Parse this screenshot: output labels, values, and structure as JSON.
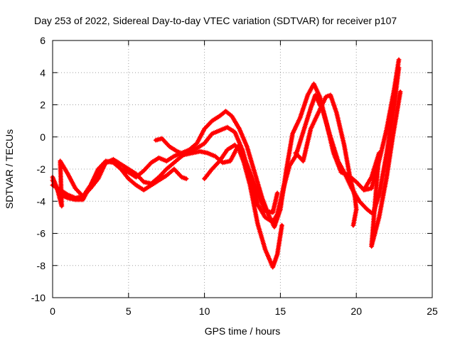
{
  "chart_data": {
    "type": "scatter",
    "title": "Day 253 of 2022, Sidereal Day-to-day VTEC variation (SDTVAR) for receiver p107",
    "xlabel": "GPS time / hours",
    "ylabel": "SDTVAR / TECUs",
    "xlim": [
      0,
      25
    ],
    "ylim": [
      -10,
      6
    ],
    "xticks": [
      "0",
      "5",
      "10",
      "15",
      "20",
      "25"
    ],
    "yticks": [
      "-10",
      "-8",
      "-6",
      "-4",
      "-2",
      "0",
      "2",
      "4",
      "6"
    ],
    "grid": true,
    "marker": "plus",
    "color": "#ff0000",
    "series": [
      {
        "name": "trace-1",
        "points": [
          [
            0.0,
            -2.7
          ],
          [
            0.5,
            -3.6
          ],
          [
            1.0,
            -3.8
          ],
          [
            1.5,
            -3.9
          ],
          [
            2.0,
            -3.9
          ],
          [
            2.5,
            -3.0
          ],
          [
            3.0,
            -2.0
          ],
          [
            3.5,
            -1.5
          ],
          [
            4.0,
            -1.6
          ],
          [
            4.5,
            -2.0
          ],
          [
            5.0,
            -2.2
          ],
          [
            5.5,
            -2.5
          ],
          [
            6.0,
            -2.1
          ],
          [
            6.5,
            -1.6
          ],
          [
            7.0,
            -1.3
          ],
          [
            7.5,
            -1.5
          ],
          [
            8.0,
            -1.2
          ],
          [
            8.5,
            -1.0
          ],
          [
            9.0,
            -0.8
          ],
          [
            9.5,
            -0.4
          ],
          [
            10.0,
            0.5
          ],
          [
            10.5,
            1.0
          ],
          [
            11.0,
            1.3
          ],
          [
            11.4,
            1.6
          ],
          [
            11.8,
            1.3
          ],
          [
            12.3,
            0.5
          ],
          [
            12.8,
            -0.6
          ],
          [
            13.3,
            -2.2
          ],
          [
            13.8,
            -3.8
          ],
          [
            14.2,
            -4.8
          ],
          [
            14.6,
            -5.6
          ],
          [
            15.0,
            -4.5
          ],
          [
            15.4,
            -2.0
          ],
          [
            15.8,
            0.2
          ],
          [
            16.3,
            1.2
          ],
          [
            16.8,
            2.6
          ],
          [
            17.2,
            3.3
          ],
          [
            17.6,
            2.5
          ],
          [
            18.0,
            1.0
          ],
          [
            18.5,
            -1.0
          ],
          [
            19.0,
            -2.2
          ],
          [
            19.5,
            -2.4
          ],
          [
            20.0,
            -2.8
          ],
          [
            20.5,
            -3.3
          ],
          [
            21.0,
            -3.2
          ],
          [
            21.5,
            -1.5
          ],
          [
            22.0,
            0.5
          ],
          [
            22.5,
            3.0
          ],
          [
            22.8,
            4.8
          ]
        ]
      },
      {
        "name": "trace-2",
        "points": [
          [
            0.0,
            -3.0
          ],
          [
            0.5,
            -3.3
          ],
          [
            1.0,
            -3.6
          ],
          [
            1.5,
            -3.8
          ],
          [
            2.0,
            -3.7
          ],
          [
            2.5,
            -3.0
          ],
          [
            3.0,
            -2.2
          ],
          [
            3.5,
            -1.6
          ],
          [
            4.0,
            -1.4
          ],
          [
            4.5,
            -1.7
          ],
          [
            5.0,
            -2.0
          ],
          [
            5.5,
            -2.3
          ],
          [
            6.0,
            -2.8
          ],
          [
            6.5,
            -2.9
          ],
          [
            7.0,
            -2.5
          ],
          [
            7.5,
            -2.0
          ],
          [
            8.0,
            -1.6
          ],
          [
            8.5,
            -1.2
          ],
          [
            9.0,
            -0.9
          ],
          [
            9.5,
            -0.7
          ],
          [
            10.0,
            -0.4
          ],
          [
            10.5,
            0.2
          ],
          [
            11.0,
            0.4
          ],
          [
            11.5,
            0.6
          ],
          [
            12.0,
            0.3
          ],
          [
            12.5,
            -0.8
          ],
          [
            13.0,
            -2.5
          ],
          [
            13.5,
            -4.2
          ],
          [
            14.0,
            -5.0
          ],
          [
            14.5,
            -5.3
          ],
          [
            14.8,
            -4.8
          ],
          [
            15.2,
            -3.2
          ],
          [
            15.6,
            -1.8
          ],
          [
            16.0,
            -1.2
          ],
          [
            16.5,
            0.3
          ],
          [
            17.0,
            1.8
          ],
          [
            17.3,
            2.6
          ],
          [
            17.8,
            1.6
          ],
          [
            18.3,
            0.0
          ],
          [
            18.8,
            -1.5
          ],
          [
            19.2,
            -2.2
          ],
          [
            19.7,
            -3.2
          ],
          [
            20.2,
            -4.0
          ],
          [
            20.7,
            -4.5
          ],
          [
            21.1,
            -4.8
          ],
          [
            21.5,
            -3.6
          ],
          [
            22.0,
            -1.0
          ],
          [
            22.5,
            2.0
          ],
          [
            22.8,
            4.3
          ]
        ]
      },
      {
        "name": "trace-3",
        "points": [
          [
            0.0,
            -2.5
          ],
          [
            0.3,
            -3.2
          ],
          [
            0.6,
            -4.3
          ],
          [
            0.5,
            -1.5
          ],
          [
            1.0,
            -2.3
          ],
          [
            1.5,
            -3.2
          ],
          [
            2.0,
            -3.7
          ],
          [
            2.5,
            -3.2
          ],
          [
            3.0,
            -2.6
          ],
          [
            3.5,
            -1.6
          ],
          [
            4.0,
            -1.5
          ],
          [
            4.5,
            -2.0
          ],
          [
            5.0,
            -2.6
          ],
          [
            5.5,
            -3.0
          ],
          [
            6.0,
            -3.3
          ],
          [
            6.5,
            -3.0
          ],
          [
            7.0,
            -2.7
          ],
          [
            7.5,
            -2.4
          ],
          [
            8.0,
            -2.0
          ],
          [
            8.5,
            -2.5
          ],
          [
            8.8,
            -2.6
          ]
        ]
      },
      {
        "name": "trace-4",
        "points": [
          [
            6.8,
            -0.2
          ],
          [
            7.2,
            -0.1
          ],
          [
            7.7,
            -0.6
          ],
          [
            8.2,
            -0.9
          ],
          [
            8.7,
            -1.1
          ],
          [
            9.2,
            -1.0
          ],
          [
            9.7,
            -0.9
          ],
          [
            10.2,
            -1.0
          ],
          [
            10.7,
            -1.2
          ],
          [
            11.2,
            -1.6
          ],
          [
            11.7,
            -1.5
          ],
          [
            12.2,
            -0.6
          ],
          [
            12.6,
            -1.6
          ],
          [
            13.0,
            -3.0
          ],
          [
            13.5,
            -5.4
          ],
          [
            14.0,
            -7.0
          ],
          [
            14.5,
            -8.1
          ],
          [
            14.8,
            -7.3
          ],
          [
            15.1,
            -5.5
          ]
        ]
      },
      {
        "name": "trace-5",
        "points": [
          [
            10.0,
            -2.6
          ],
          [
            10.5,
            -2.0
          ],
          [
            11.0,
            -1.5
          ],
          [
            11.5,
            -0.8
          ],
          [
            12.0,
            -0.5
          ],
          [
            12.5,
            -1.0
          ],
          [
            13.0,
            -2.2
          ],
          [
            13.5,
            -3.5
          ],
          [
            14.0,
            -4.6
          ],
          [
            14.5,
            -4.7
          ],
          [
            14.8,
            -3.5
          ]
        ]
      },
      {
        "name": "trace-6",
        "points": [
          [
            16.0,
            -1.0
          ],
          [
            16.5,
            -1.5
          ],
          [
            17.0,
            0.5
          ],
          [
            17.5,
            1.5
          ],
          [
            18.0,
            2.5
          ],
          [
            18.3,
            2.6
          ],
          [
            18.7,
            1.5
          ],
          [
            19.2,
            -0.5
          ],
          [
            19.6,
            -2.6
          ],
          [
            19.9,
            -3.7
          ],
          [
            20.0,
            -4.5
          ],
          [
            19.8,
            -5.5
          ]
        ]
      },
      {
        "name": "trace-7",
        "points": [
          [
            20.5,
            -3.3
          ],
          [
            21.0,
            -2.5
          ],
          [
            21.5,
            -1.0
          ],
          [
            21.0,
            -6.8
          ],
          [
            21.5,
            -5.0
          ],
          [
            22.0,
            -2.5
          ],
          [
            22.4,
            0.0
          ],
          [
            22.9,
            2.8
          ]
        ]
      }
    ]
  }
}
